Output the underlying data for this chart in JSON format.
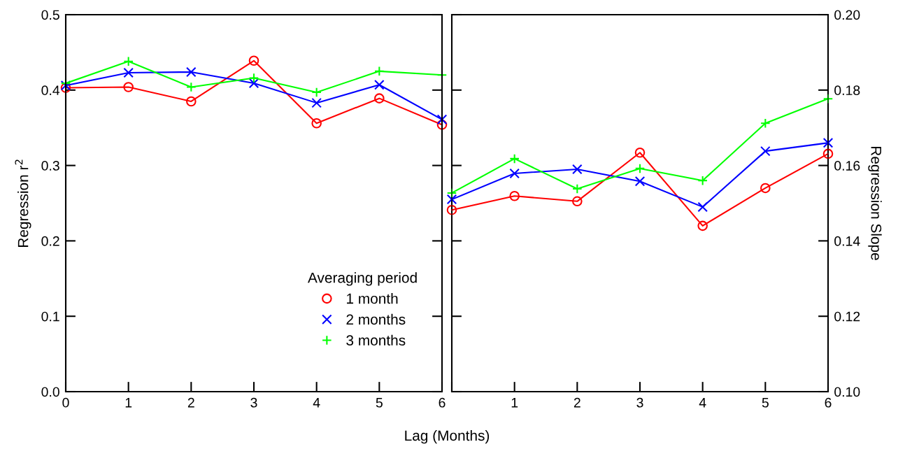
{
  "chart_data": [
    {
      "type": "line",
      "xlabel": "Lag (Months)",
      "ylabel": "Regression r$^{2}$",
      "x": [
        0,
        1,
        2,
        3,
        4,
        5,
        6
      ],
      "xlim": [
        0,
        6
      ],
      "xticks": [
        0,
        1,
        2,
        3,
        4,
        5,
        6
      ],
      "ylim": [
        0,
        0.5
      ],
      "yticks": [
        {
          "value": 0,
          "label": "0.0"
        },
        0.1,
        0.2,
        0.3,
        0.4,
        0.5
      ],
      "grid": false,
      "legend": "bottom right",
      "legend_title": "Averaging period",
      "series": [
        {
          "name": "1 month",
          "color": "#ff0000",
          "marker": "circle",
          "values": [
            0.403,
            0.404,
            0.385,
            0.439,
            0.356,
            0.389,
            0.354
          ]
        },
        {
          "name": "2 months",
          "color": "#0000ff",
          "marker": "cross",
          "values": [
            0.406,
            0.423,
            0.424,
            0.409,
            0.383,
            0.407,
            0.361
          ]
        },
        {
          "name": "3 months",
          "color": "#00ff00",
          "marker": "plus",
          "values": [
            0.409,
            0.438,
            0.404,
            0.416,
            0.397,
            0.425,
            0.42
          ]
        }
      ]
    },
    {
      "type": "line",
      "y2label": "Regression Slope",
      "x": [
        0,
        1,
        2,
        3,
        4,
        5,
        6
      ],
      "xlim": [
        0,
        6
      ],
      "xticks": [
        {
          "value": 0,
          "label": null
        },
        1,
        2,
        3,
        4,
        5,
        6
      ],
      "y2lim": [
        0.1,
        0.2
      ],
      "y2ticks": [
        {
          "value": 0.1,
          "label": "0.10"
        },
        0.12,
        0.14,
        0.16,
        0.18,
        {
          "value": 0.2,
          "label": "0.20"
        }
      ],
      "grid": false,
      "series": [
        {
          "color": "#ff0000",
          "marker": "circle",
          "axis": "y2",
          "values": [
            0.1482,
            0.1519,
            0.1505,
            0.1634,
            0.144,
            0.154,
            0.1631
          ]
        },
        {
          "color": "#0000ff",
          "marker": "cross",
          "axis": "y2",
          "values": [
            0.151,
            0.1579,
            0.159,
            0.1558,
            0.149,
            0.1638,
            0.166
          ]
        },
        {
          "color": "#00ff00",
          "marker": "plus",
          "axis": "y2",
          "values": [
            0.1527,
            0.1618,
            0.1538,
            0.1592,
            0.156,
            0.1712,
            0.1777
          ]
        }
      ]
    }
  ]
}
